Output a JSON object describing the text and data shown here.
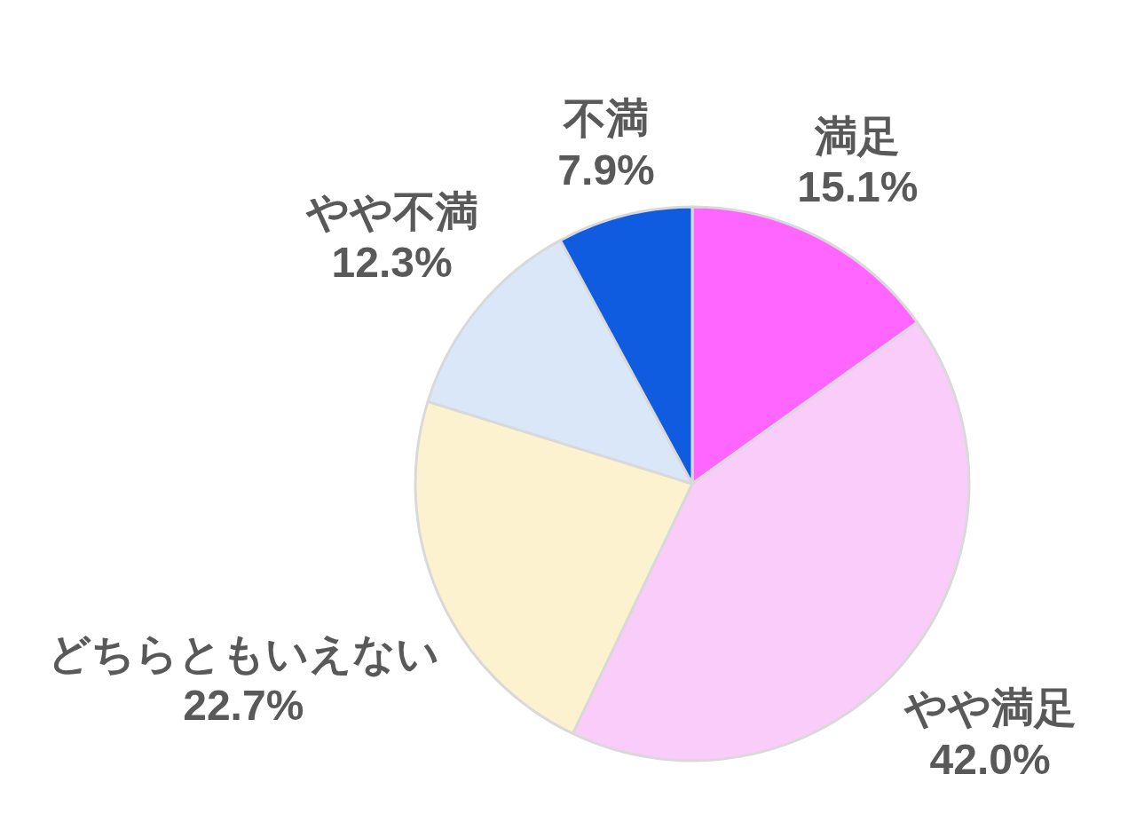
{
  "chart_data": {
    "type": "pie",
    "categories": [
      "満足",
      "やや満足",
      "どちらともいえない",
      "やや不満",
      "不満"
    ],
    "values": [
      15.1,
      42.0,
      22.7,
      12.3,
      7.9
    ],
    "value_labels": [
      "15.1%",
      "42.0%",
      "22.7%",
      "12.3%",
      "7.9%"
    ],
    "colors": [
      "#ff66ff",
      "#f9ccf9",
      "#fdf2d0",
      "#dae7f9",
      "#0f5ce0"
    ]
  }
}
